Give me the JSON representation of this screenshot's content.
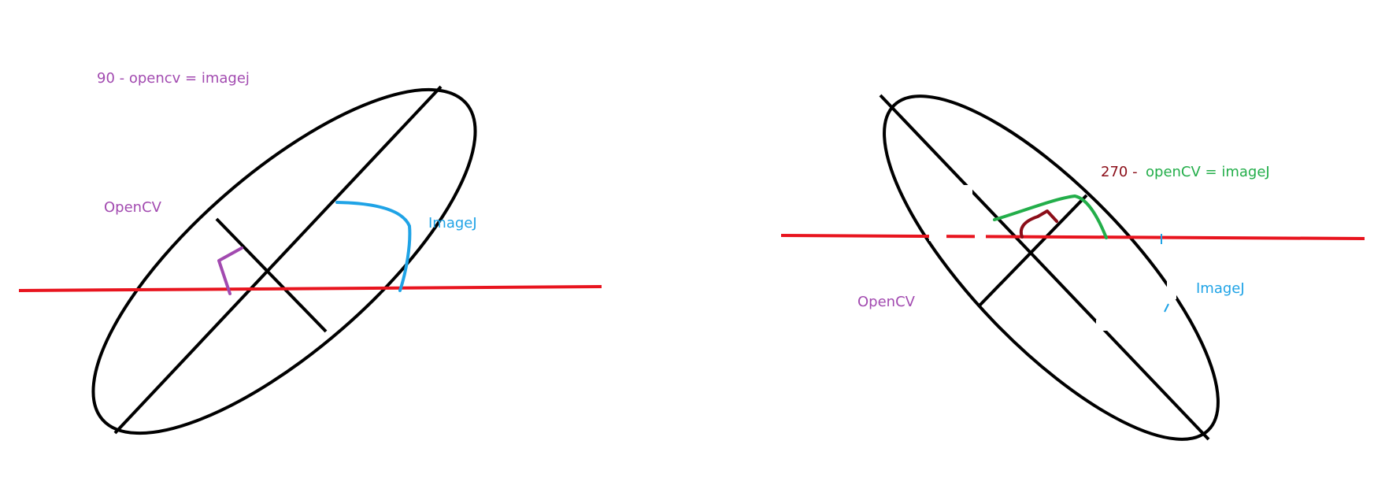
{
  "colors": {
    "ellipse": "#000000",
    "reference_line": "#e8141e",
    "opencv": "#a24ab0",
    "imagej": "#1fa3e6",
    "dark_red": "#8b0d18",
    "green": "#23ae4a"
  },
  "left_panel": {
    "formula": "90 - opencv = imagej",
    "opencv_label": "OpenCV",
    "imagej_label": "ImageJ"
  },
  "right_panel": {
    "formula_number": "270 -",
    "formula_rest": "openCV = imageJ",
    "opencv_label": "OpenCV",
    "imagej_label": "ImageJ"
  }
}
